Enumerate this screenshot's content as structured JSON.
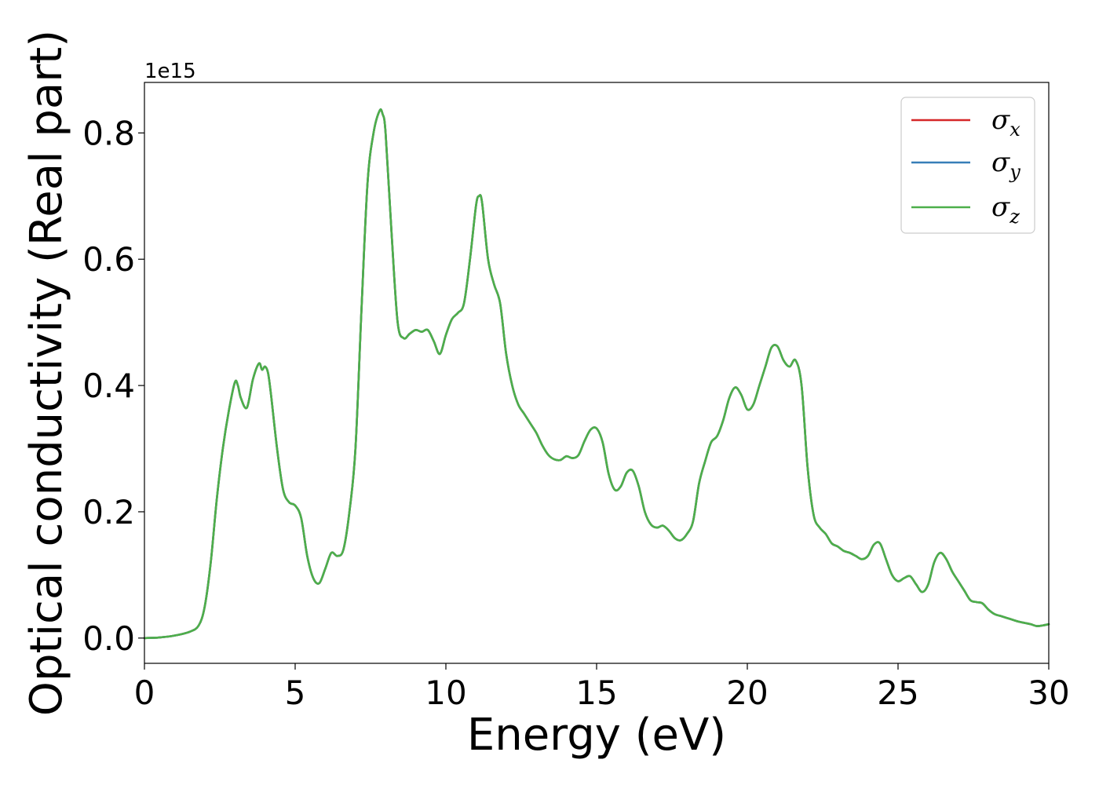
{
  "chart_data": {
    "type": "line",
    "xlabel": "Energy (eV)",
    "ylabel": "Optical conductivity (Real part)",
    "y_offset_text": "1e15",
    "xlim": [
      0,
      30
    ],
    "ylim": [
      -0.04,
      0.88
    ],
    "x_ticks": [
      0,
      5,
      10,
      15,
      20,
      25,
      30
    ],
    "x_tick_labels": [
      "0",
      "5",
      "10",
      "15",
      "20",
      "25",
      "30"
    ],
    "y_ticks": [
      0.0,
      0.2,
      0.4,
      0.6,
      0.8
    ],
    "y_tick_labels": [
      "0.0",
      "0.2",
      "0.4",
      "0.6",
      "0.8"
    ],
    "grid": false,
    "legend_position": "top-right",
    "x": [
      0,
      0.5,
      1.0,
      1.5,
      1.8,
      2.0,
      2.2,
      2.4,
      2.6,
      2.8,
      3.0,
      3.1,
      3.2,
      3.4,
      3.6,
      3.8,
      3.9,
      4.0,
      4.1,
      4.2,
      4.4,
      4.6,
      4.8,
      5.0,
      5.2,
      5.4,
      5.6,
      5.8,
      6.0,
      6.2,
      6.4,
      6.6,
      6.8,
      7.0,
      7.2,
      7.4,
      7.6,
      7.8,
      7.9,
      8.0,
      8.2,
      8.4,
      8.6,
      8.8,
      9.0,
      9.2,
      9.4,
      9.6,
      9.8,
      10.0,
      10.2,
      10.4,
      10.6,
      10.8,
      11.0,
      11.1,
      11.2,
      11.4,
      11.6,
      11.8,
      12.0,
      12.2,
      12.4,
      12.6,
      12.8,
      13.0,
      13.2,
      13.4,
      13.6,
      13.8,
      14.0,
      14.2,
      14.4,
      14.6,
      14.8,
      15.0,
      15.2,
      15.4,
      15.6,
      15.8,
      16.0,
      16.2,
      16.4,
      16.6,
      16.8,
      17.0,
      17.2,
      17.4,
      17.6,
      17.8,
      18.0,
      18.2,
      18.4,
      18.6,
      18.8,
      19.0,
      19.2,
      19.4,
      19.6,
      19.8,
      20.0,
      20.2,
      20.4,
      20.6,
      20.8,
      21.0,
      21.2,
      21.4,
      21.6,
      21.8,
      22.0,
      22.2,
      22.4,
      22.6,
      22.8,
      23.0,
      23.2,
      23.4,
      23.6,
      23.8,
      24.0,
      24.2,
      24.4,
      24.6,
      24.8,
      25.0,
      25.2,
      25.4,
      25.6,
      25.8,
      26.0,
      26.2,
      26.4,
      26.6,
      26.8,
      27.0,
      27.2,
      27.4,
      27.6,
      27.8,
      28.0,
      28.2,
      28.4,
      28.6,
      28.8,
      29.0,
      29.2,
      29.4,
      29.6,
      29.8,
      30.0
    ],
    "series": [
      {
        "name": "σx",
        "subscript": "x",
        "color": "#d62728",
        "values": [
          0.0,
          0.001,
          0.004,
          0.01,
          0.02,
          0.05,
          0.12,
          0.22,
          0.3,
          0.36,
          0.405,
          0.4,
          0.38,
          0.365,
          0.41,
          0.435,
          0.425,
          0.43,
          0.42,
          0.385,
          0.3,
          0.235,
          0.215,
          0.21,
          0.19,
          0.13,
          0.095,
          0.087,
          0.11,
          0.135,
          0.13,
          0.14,
          0.2,
          0.3,
          0.52,
          0.72,
          0.8,
          0.835,
          0.83,
          0.8,
          0.64,
          0.5,
          0.475,
          0.482,
          0.488,
          0.485,
          0.488,
          0.47,
          0.45,
          0.48,
          0.505,
          0.515,
          0.53,
          0.6,
          0.685,
          0.7,
          0.69,
          0.6,
          0.56,
          0.53,
          0.45,
          0.4,
          0.37,
          0.355,
          0.34,
          0.325,
          0.305,
          0.29,
          0.283,
          0.282,
          0.288,
          0.285,
          0.29,
          0.312,
          0.33,
          0.332,
          0.31,
          0.26,
          0.235,
          0.24,
          0.262,
          0.265,
          0.24,
          0.2,
          0.18,
          0.175,
          0.178,
          0.17,
          0.158,
          0.155,
          0.165,
          0.185,
          0.245,
          0.28,
          0.31,
          0.32,
          0.345,
          0.38,
          0.397,
          0.385,
          0.362,
          0.37,
          0.4,
          0.43,
          0.46,
          0.462,
          0.44,
          0.43,
          0.44,
          0.4,
          0.27,
          0.195,
          0.175,
          0.165,
          0.15,
          0.145,
          0.138,
          0.135,
          0.13,
          0.125,
          0.13,
          0.148,
          0.15,
          0.125,
          0.1,
          0.09,
          0.095,
          0.098,
          0.085,
          0.073,
          0.085,
          0.12,
          0.135,
          0.125,
          0.105,
          0.09,
          0.075,
          0.06,
          0.057,
          0.055,
          0.045,
          0.038,
          0.035,
          0.032,
          0.029,
          0.026,
          0.024,
          0.022,
          0.019,
          0.02,
          0.022
        ]
      },
      {
        "name": "σy",
        "subscript": "y",
        "color": "#377eb8",
        "values": [
          0.0,
          0.001,
          0.004,
          0.01,
          0.02,
          0.05,
          0.12,
          0.22,
          0.3,
          0.36,
          0.405,
          0.4,
          0.38,
          0.365,
          0.41,
          0.435,
          0.425,
          0.43,
          0.42,
          0.385,
          0.3,
          0.235,
          0.215,
          0.21,
          0.19,
          0.13,
          0.095,
          0.087,
          0.11,
          0.135,
          0.13,
          0.14,
          0.2,
          0.3,
          0.52,
          0.72,
          0.8,
          0.835,
          0.83,
          0.8,
          0.64,
          0.5,
          0.475,
          0.482,
          0.488,
          0.485,
          0.488,
          0.47,
          0.45,
          0.48,
          0.505,
          0.515,
          0.53,
          0.6,
          0.685,
          0.7,
          0.69,
          0.6,
          0.56,
          0.53,
          0.45,
          0.4,
          0.37,
          0.355,
          0.34,
          0.325,
          0.305,
          0.29,
          0.283,
          0.282,
          0.288,
          0.285,
          0.29,
          0.312,
          0.33,
          0.332,
          0.31,
          0.26,
          0.235,
          0.24,
          0.262,
          0.265,
          0.24,
          0.2,
          0.18,
          0.175,
          0.178,
          0.17,
          0.158,
          0.155,
          0.165,
          0.185,
          0.245,
          0.28,
          0.31,
          0.32,
          0.345,
          0.38,
          0.397,
          0.385,
          0.362,
          0.37,
          0.4,
          0.43,
          0.46,
          0.462,
          0.44,
          0.43,
          0.44,
          0.4,
          0.27,
          0.195,
          0.175,
          0.165,
          0.15,
          0.145,
          0.138,
          0.135,
          0.13,
          0.125,
          0.13,
          0.148,
          0.15,
          0.125,
          0.1,
          0.09,
          0.095,
          0.098,
          0.085,
          0.073,
          0.085,
          0.12,
          0.135,
          0.125,
          0.105,
          0.09,
          0.075,
          0.06,
          0.057,
          0.055,
          0.045,
          0.038,
          0.035,
          0.032,
          0.029,
          0.026,
          0.024,
          0.022,
          0.019,
          0.02,
          0.022
        ]
      },
      {
        "name": "σz",
        "subscript": "z",
        "color": "#4daf4a",
        "values": [
          0.0,
          0.001,
          0.004,
          0.01,
          0.02,
          0.05,
          0.12,
          0.22,
          0.3,
          0.36,
          0.405,
          0.4,
          0.38,
          0.365,
          0.41,
          0.435,
          0.425,
          0.43,
          0.42,
          0.385,
          0.3,
          0.235,
          0.215,
          0.21,
          0.19,
          0.13,
          0.095,
          0.087,
          0.11,
          0.135,
          0.13,
          0.14,
          0.2,
          0.3,
          0.52,
          0.72,
          0.8,
          0.835,
          0.83,
          0.8,
          0.64,
          0.5,
          0.475,
          0.482,
          0.488,
          0.485,
          0.488,
          0.47,
          0.45,
          0.48,
          0.505,
          0.515,
          0.53,
          0.6,
          0.685,
          0.7,
          0.69,
          0.6,
          0.56,
          0.53,
          0.45,
          0.4,
          0.37,
          0.355,
          0.34,
          0.325,
          0.305,
          0.29,
          0.283,
          0.282,
          0.288,
          0.285,
          0.29,
          0.312,
          0.33,
          0.332,
          0.31,
          0.26,
          0.235,
          0.24,
          0.262,
          0.265,
          0.24,
          0.2,
          0.18,
          0.175,
          0.178,
          0.17,
          0.158,
          0.155,
          0.165,
          0.185,
          0.245,
          0.28,
          0.31,
          0.32,
          0.345,
          0.38,
          0.397,
          0.385,
          0.362,
          0.37,
          0.4,
          0.43,
          0.46,
          0.462,
          0.44,
          0.43,
          0.44,
          0.4,
          0.27,
          0.195,
          0.175,
          0.165,
          0.15,
          0.145,
          0.138,
          0.135,
          0.13,
          0.125,
          0.13,
          0.148,
          0.15,
          0.125,
          0.1,
          0.09,
          0.095,
          0.098,
          0.085,
          0.073,
          0.085,
          0.12,
          0.135,
          0.125,
          0.105,
          0.09,
          0.075,
          0.06,
          0.057,
          0.055,
          0.045,
          0.038,
          0.035,
          0.032,
          0.029,
          0.026,
          0.024,
          0.022,
          0.019,
          0.02,
          0.022
        ]
      }
    ]
  }
}
